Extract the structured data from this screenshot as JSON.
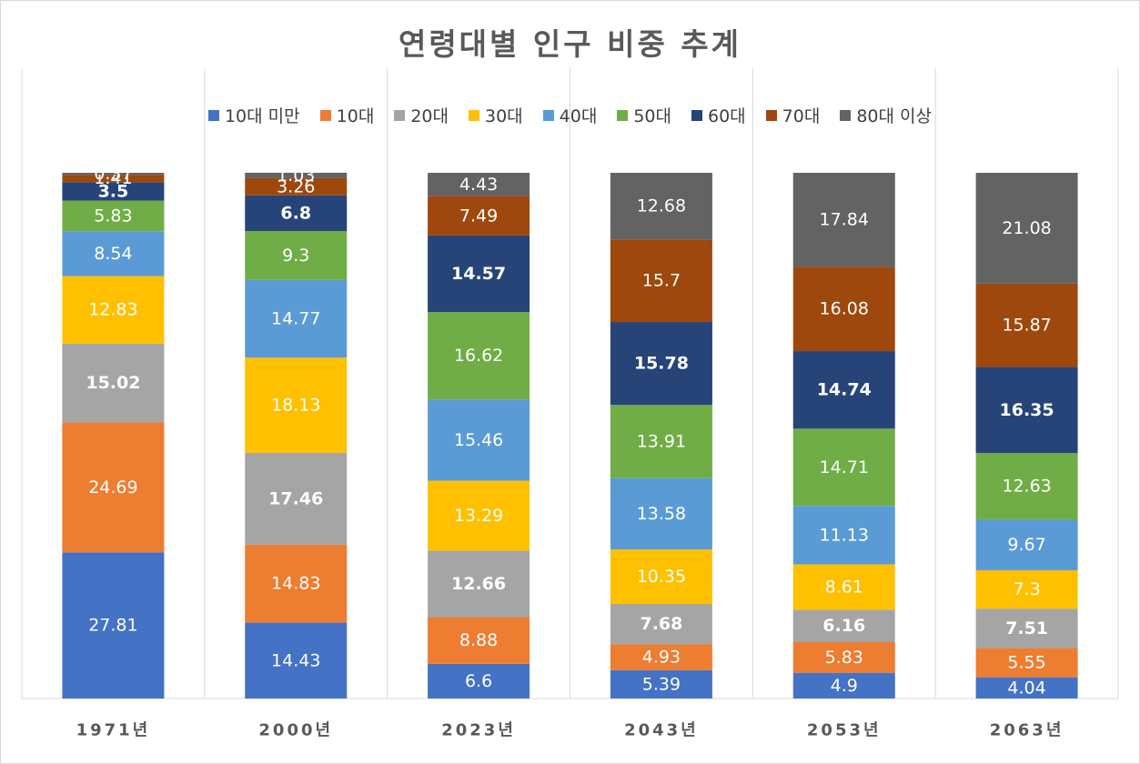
{
  "chart_data": {
    "type": "bar",
    "stacked": true,
    "title": "연령대별 인구 비중 추계",
    "xlabel": "",
    "ylabel": "",
    "ylim": [
      0,
      100
    ],
    "legend_position": "top",
    "categories": [
      "1971년",
      "2000년",
      "2023년",
      "2043년",
      "2053년",
      "2063년"
    ],
    "series": [
      {
        "name": "10대 미만",
        "color": "#4472c4",
        "label_color": "#ffffff",
        "bold": false,
        "values": [
          27.81,
          14.43,
          6.6,
          5.39,
          4.9,
          4.04
        ]
      },
      {
        "name": "10대",
        "color": "#ed7d31",
        "label_color": "#ffffff",
        "bold": false,
        "values": [
          24.69,
          14.83,
          8.88,
          4.93,
          5.83,
          5.55
        ]
      },
      {
        "name": "20대",
        "color": "#a5a5a5",
        "label_color": "#ffffff",
        "bold": true,
        "values": [
          15.02,
          17.46,
          12.66,
          7.68,
          6.16,
          7.51
        ]
      },
      {
        "name": "30대",
        "color": "#ffc000",
        "label_color": "#ffffff",
        "bold": false,
        "values": [
          12.83,
          18.13,
          13.29,
          10.35,
          8.61,
          7.3
        ]
      },
      {
        "name": "40대",
        "color": "#5b9bd5",
        "label_color": "#ffffff",
        "bold": false,
        "values": [
          8.54,
          14.77,
          15.46,
          13.58,
          11.13,
          9.67
        ]
      },
      {
        "name": "50대",
        "color": "#70ad47",
        "label_color": "#ffffff",
        "bold": false,
        "values": [
          5.83,
          9.3,
          16.62,
          13.91,
          14.71,
          12.63
        ]
      },
      {
        "name": "60대",
        "color": "#264478",
        "label_color": "#ffffff",
        "bold": true,
        "values": [
          3.5,
          6.8,
          14.57,
          15.78,
          14.74,
          16.35
        ]
      },
      {
        "name": "70대",
        "color": "#9e480e",
        "label_color": "#ffffff",
        "bold": false,
        "values": [
          1.41,
          3.26,
          7.49,
          15.7,
          16.08,
          15.87
        ]
      },
      {
        "name": "80대 이상",
        "color": "#636363",
        "label_color": "#ffffff",
        "bold": false,
        "values": [
          0.37,
          1.03,
          4.43,
          12.68,
          17.84,
          21.08
        ]
      }
    ]
  }
}
